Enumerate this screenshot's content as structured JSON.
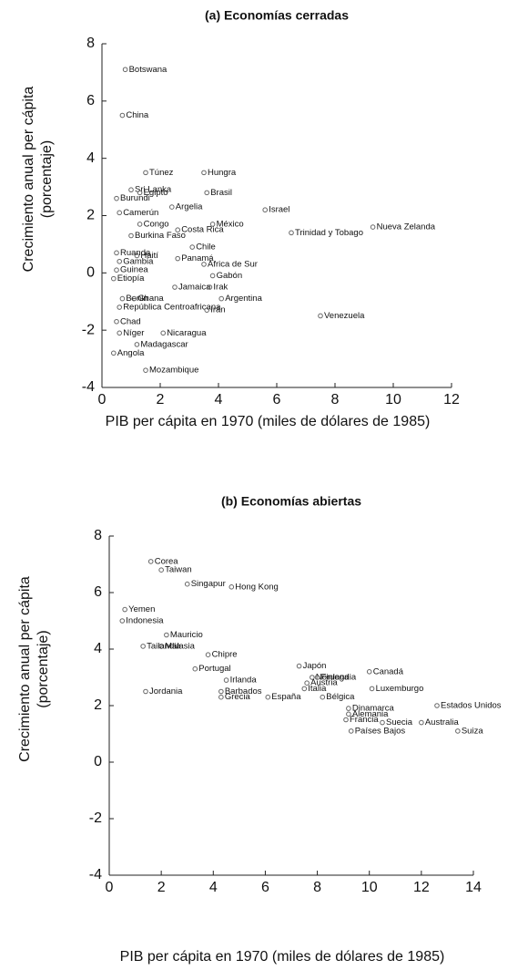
{
  "chart_data": [
    {
      "type": "scatter",
      "title": "(a) Economías cerradas",
      "xlabel": "PIB per cápita en 1970 (miles de dólares de 1985)",
      "ylabel": [
        "Crecimiento anual per cápita",
        "(porcentaje)"
      ],
      "color": "#666666",
      "xlim": [
        0,
        12
      ],
      "ylim": [
        -4,
        8
      ],
      "xticks": [
        0,
        2,
        4,
        6,
        8,
        10,
        12
      ],
      "yticks": [
        -4,
        -2,
        0,
        2,
        4,
        6,
        8
      ],
      "labels": [
        "Botswana",
        "China",
        "Túnez",
        "Hungra",
        "Sri Lanka",
        "Brasil",
        "Egipto",
        "Burundi",
        "Argelia",
        "Camerún",
        "Israel",
        "Congo",
        "México",
        "Costa Rica",
        "Trinidad y Tobago",
        "Nueva Zelanda",
        "Burkina Faso",
        "Chile",
        "Haití",
        "Panamá",
        "Ruanda",
        "Gambia",
        "Africa de Sur",
        "Guinea",
        "Gabón",
        "Etiopía",
        "Jamaica",
        "Irak",
        "Benin",
        "Ghana",
        "Argentina",
        "República Centroafricana",
        "Irán",
        "Venezuela",
        "Chad",
        "Níger",
        "Nicaragua",
        "Madagascar",
        "Angola",
        "Mozambique"
      ],
      "x": [
        0.8,
        0.7,
        1.5,
        3.5,
        1.0,
        3.6,
        1.3,
        0.5,
        2.4,
        0.6,
        5.6,
        1.3,
        3.8,
        2.6,
        6.5,
        9.3,
        1.0,
        3.1,
        1.2,
        2.6,
        0.5,
        0.6,
        3.5,
        0.5,
        3.8,
        0.4,
        2.5,
        3.7,
        0.7,
        1.1,
        4.1,
        0.6,
        3.6,
        7.5,
        0.5,
        0.6,
        2.1,
        1.2,
        0.4,
        1.5
      ],
      "values": [
        7.1,
        5.5,
        3.5,
        3.5,
        2.9,
        2.8,
        2.8,
        2.6,
        2.3,
        2.1,
        2.2,
        1.7,
        1.7,
        1.5,
        1.4,
        1.6,
        1.3,
        0.9,
        0.6,
        0.5,
        0.7,
        0.4,
        0.3,
        0.1,
        -0.1,
        -0.2,
        -0.5,
        -0.5,
        -0.9,
        -0.9,
        -0.9,
        -1.2,
        -1.3,
        -1.5,
        -1.7,
        -2.1,
        -2.1,
        -2.5,
        -2.8,
        -3.4
      ]
    },
    {
      "type": "scatter",
      "title": "(b) Economías abiertas",
      "xlabel": "PIB per cápita en 1970 (miles de dólares de 1985)",
      "ylabel": [
        "Crecimiento anual per cápita",
        "(porcentaje)"
      ],
      "color": "#666666",
      "xlim": [
        0,
        14
      ],
      "ylim": [
        -4,
        8
      ],
      "xticks": [
        0,
        2,
        4,
        6,
        8,
        10,
        12,
        14
      ],
      "yticks": [
        -4,
        -2,
        0,
        2,
        4,
        6,
        8
      ],
      "labels": [
        "Corea",
        "Taiwan",
        "Singapur",
        "Hong Kong",
        "Yemen",
        "Indonesia",
        "Mauricio",
        "Malasia",
        "Tailandia",
        "Chipre",
        "Portugal",
        "Irlanda",
        "Jordania",
        "Barbados",
        "Grecia",
        "España",
        "Japón",
        "Noruega",
        "Finlandia",
        "Italia",
        "Austria",
        "Canadá",
        "Luxemburgo",
        "Bélgica",
        "Estados Unidos",
        "Dinamarca",
        "Alemania",
        "Australia",
        "Francia",
        "Suecia",
        "Países Bajos",
        "Suiza"
      ],
      "x": [
        1.6,
        2.0,
        3.0,
        4.7,
        0.6,
        0.5,
        2.2,
        2.0,
        1.3,
        3.8,
        3.3,
        4.5,
        1.4,
        4.3,
        4.3,
        6.1,
        7.3,
        7.8,
        8.0,
        7.5,
        7.6,
        10.0,
        10.1,
        8.2,
        12.6,
        9.2,
        9.2,
        12.0,
        9.1,
        10.5,
        9.3,
        13.4
      ],
      "values": [
        7.1,
        6.8,
        6.3,
        6.2,
        5.4,
        5.0,
        4.5,
        4.1,
        4.1,
        3.8,
        3.3,
        2.9,
        2.5,
        2.5,
        2.3,
        2.3,
        3.4,
        3.0,
        3.0,
        2.6,
        2.8,
        3.2,
        2.6,
        2.3,
        2.0,
        1.9,
        1.7,
        1.4,
        1.5,
        1.4,
        1.1,
        1.1
      ]
    }
  ]
}
